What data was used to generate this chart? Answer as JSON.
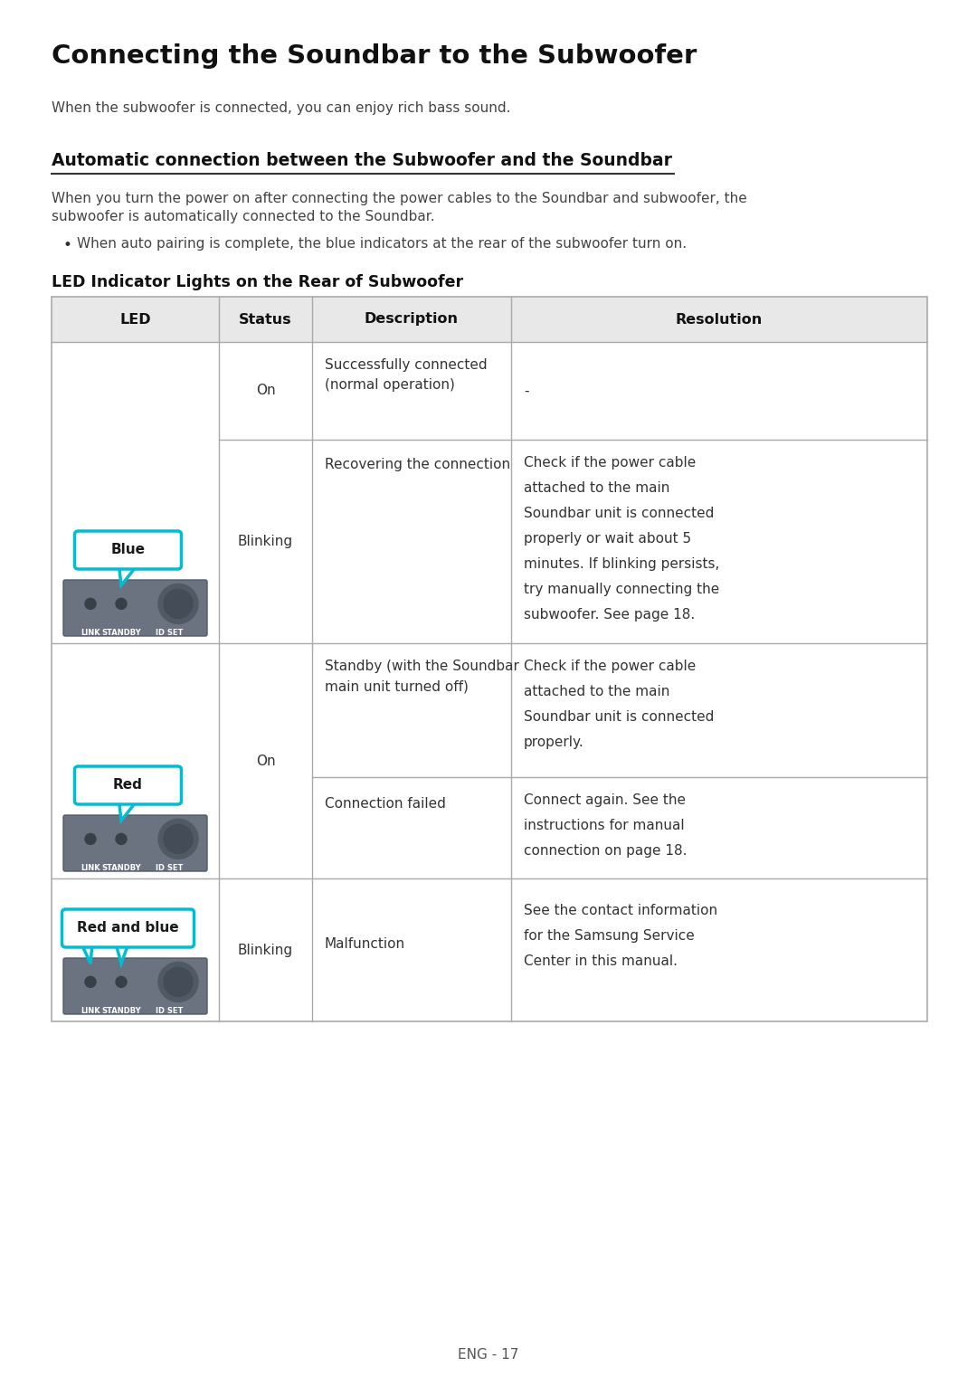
{
  "title": "Connecting the Soundbar to the Subwoofer",
  "subtitle": "When the subwoofer is connected, you can enjoy rich bass sound.",
  "section_title": "Automatic connection between the Subwoofer and the Soundbar",
  "section_body_line1": "When you turn the power on after connecting the power cables to the Soundbar and subwoofer, the",
  "section_body_line2": "subwoofer is automatically connected to the Soundbar.",
  "bullet": "When auto pairing is complete, the blue indicators at the rear of the subwoofer turn on.",
  "table_title": "LED Indicator Lights on the Rear of Subwoofer",
  "col_headers": [
    "LED",
    "Status",
    "Description",
    "Resolution"
  ],
  "footer": "ENG - 17",
  "bg_color": "#ffffff",
  "header_bg": "#e8e8e8",
  "table_border": "#aaaaaa",
  "cyan_color": "#00bcd4",
  "device_bg": "#6b7280",
  "text_color": "#333333"
}
